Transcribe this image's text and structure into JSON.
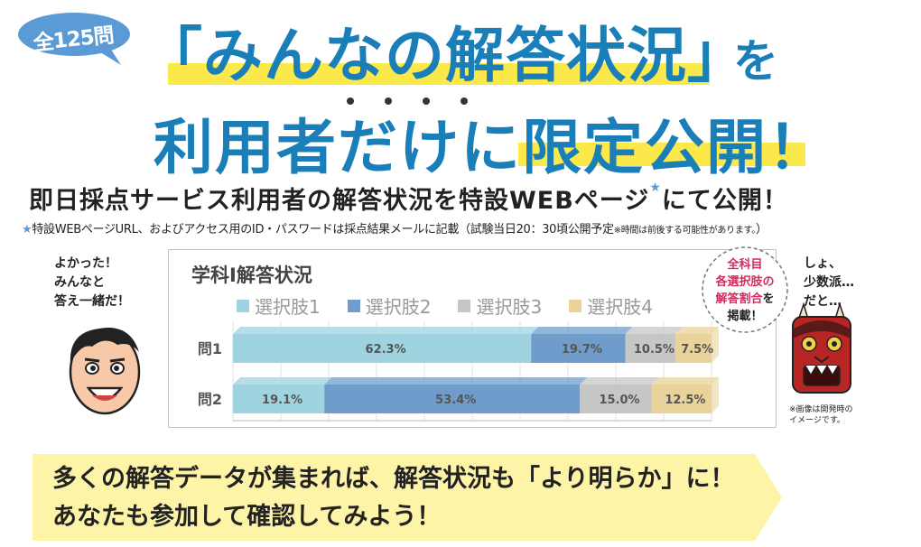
{
  "badge": {
    "text": "全125問"
  },
  "headline": {
    "line1": "「みんなの解答状況」",
    "line1_suffix": "を",
    "line2": "利用者だけに限定公開！"
  },
  "subheadline": {
    "main": "即日採点サービス利用者の解答状況を特設WEBページ",
    "star": "★",
    "main_tail": "にて公開！",
    "note_star": "★",
    "note": "特設WEBページURL、およびアクセス用のID・パスワードは採点結果メールに記載（試験当日20：30頃公開予定",
    "note_small": "※時間は前後する可能性があります。",
    "note_end": "）"
  },
  "left_character": {
    "lines": [
      "よかった！",
      "みんなと",
      "答え一緒だ！"
    ]
  },
  "right_character": {
    "lines": [
      "しょ、",
      "少数派…",
      "だと…"
    ],
    "note_lines": [
      "※画像は開発時の",
      "イメージです。"
    ]
  },
  "callout": {
    "lines": [
      "全科目",
      "各選択肢の",
      "解答割合",
      "を",
      "掲載！"
    ]
  },
  "banner": {
    "line1": "多くの解答データが集まれば、解答状況も「より明らか」に！",
    "line2": "あなたも参加して確認してみよう！"
  },
  "colors": {
    "headline_blue": "#1a7fb8",
    "highlight_yellow": "#fbe84a",
    "badge_blue": "#5b9bd5",
    "callout_pink": "#d12d5e",
    "banner_yellow": "#fdf4a8"
  },
  "chart_data": {
    "type": "bar",
    "orientation": "horizontal",
    "stacked": true,
    "percent": true,
    "title": "学科Ⅰ解答状況",
    "categories": [
      "問1",
      "問2"
    ],
    "series": [
      {
        "name": "選択肢1",
        "color": "#9fd3e0",
        "values": [
          62.3,
          19.1
        ]
      },
      {
        "name": "選択肢2",
        "color": "#6f9ccb",
        "values": [
          19.7,
          53.4
        ]
      },
      {
        "name": "選択肢3",
        "color": "#c6c6c6",
        "values": [
          10.5,
          15.0
        ]
      },
      {
        "name": "選択肢4",
        "color": "#ead39b",
        "values": [
          7.5,
          12.5
        ]
      }
    ],
    "labels": [
      [
        "62.3%",
        "19.7%",
        "10.5%",
        "7.5%"
      ],
      [
        "19.1%",
        "53.4%",
        "15.0%",
        "12.5%"
      ]
    ],
    "xlim": [
      0,
      100
    ],
    "grid": true,
    "legend": "top"
  }
}
